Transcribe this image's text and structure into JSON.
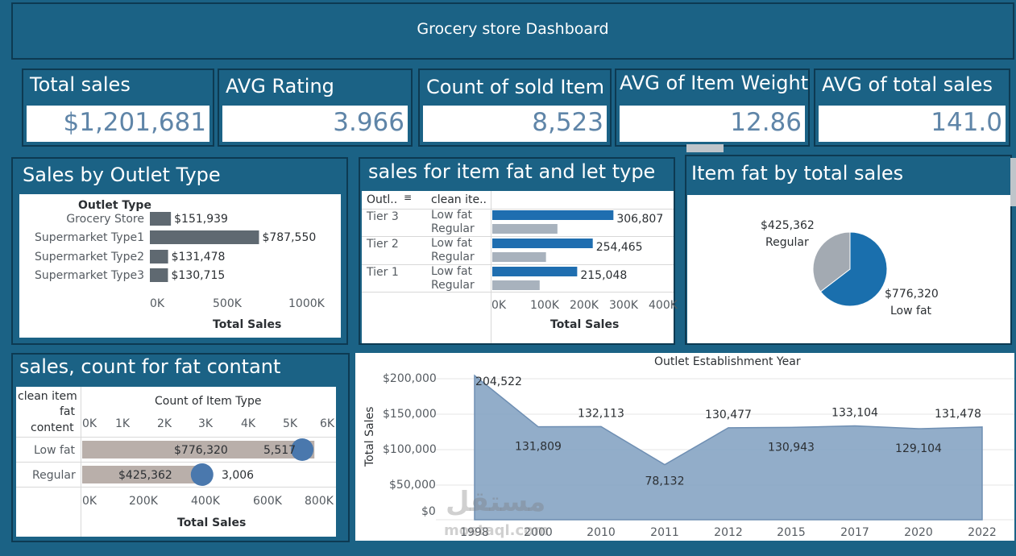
{
  "dashboard": {
    "title": "Grocery store Dashboard"
  },
  "kpis": [
    {
      "label": "Total sales",
      "value": "$1,201,681"
    },
    {
      "label": "AVG Rating",
      "value": "3.966"
    },
    {
      "label": "Count of sold Item",
      "value": "8,523"
    },
    {
      "label": "AVG of Item Weight",
      "value": "12.86"
    },
    {
      "label": "AVG of total sales",
      "value": "141.0"
    }
  ],
  "outlet_type_panel": {
    "title": "Sales by Outlet Type",
    "header": "Outlet Type",
    "x_label": "Total Sales",
    "ticks": [
      "0K",
      "500K",
      "1000K"
    ]
  },
  "fat_tier_panel": {
    "title": "sales for item fat and let type",
    "col1": "Outl..",
    "col2": "clean ite..",
    "x_label": "Total Sales",
    "ticks": [
      "0K",
      "100K",
      "200K",
      "300K",
      "400K"
    ],
    "tiers": [
      "Tier 3",
      "Tier 2",
      "Tier 1"
    ],
    "fat_labels": [
      "Low fat",
      "Regular"
    ]
  },
  "pie_panel": {
    "title": "Item fat by total sales",
    "regular_value": "$425,362",
    "regular_label": "Regular",
    "lowfat_value": "$776,320",
    "lowfat_label": "Low fat"
  },
  "count_panel": {
    "title": "sales, count for  fat contant",
    "row_header_1": "clean item",
    "row_header_2": "fat",
    "row_header_3": "content",
    "top_axis_title": "Count of Item Type",
    "top_ticks": [
      "0K",
      "1K",
      "2K",
      "3K",
      "4K",
      "5K",
      "6K"
    ],
    "bottom_ticks": [
      "0K",
      "200K",
      "400K",
      "600K",
      "800K"
    ],
    "x_label": "Total Sales",
    "rows": [
      {
        "label": "Low fat",
        "sales_label": "$776,320",
        "count_label": "5,517"
      },
      {
        "label": "Regular",
        "sales_label": "$425,362",
        "count_label": "3,006"
      }
    ]
  },
  "area_panel": {
    "title": "Outlet Establishment Year",
    "y_label": "Total Sales",
    "y_ticks": [
      "$200,000",
      "$150,000",
      "$100,000",
      "$50,000",
      "$0"
    ],
    "watermark": "مستقل",
    "watermark_sub": "mostaql.com"
  },
  "chart_data": [
    {
      "type": "bar",
      "title": "Sales by Outlet Type",
      "xlabel": "Total Sales",
      "categories": [
        "Grocery Store",
        "Supermarket Type1",
        "Supermarket Type2",
        "Supermarket Type3"
      ],
      "values": [
        151939,
        787550,
        131478,
        130715
      ],
      "value_labels": [
        "$151,939",
        "$787,550",
        "$131,478",
        "$130,715"
      ],
      "xlim": [
        0,
        1000000
      ],
      "color": "#5f6971"
    },
    {
      "type": "bar",
      "title": "sales for item fat and let type",
      "xlabel": "Total Sales",
      "categories": [
        "Tier 3",
        "Tier 2",
        "Tier 1"
      ],
      "series": [
        {
          "name": "Low fat",
          "values": [
            306807,
            254465,
            215048
          ],
          "color": "#1f6eb0"
        },
        {
          "name": "Regular",
          "values": [
            165000,
            136000,
            120000
          ],
          "color": "#a8b2bd"
        }
      ],
      "total_labels": [
        "306,807",
        "254,465",
        "215,048"
      ],
      "xlim": [
        0,
        400000
      ]
    },
    {
      "type": "pie",
      "title": "Item fat by total sales",
      "slices": [
        {
          "name": "Low fat",
          "value": 776320,
          "color": "#1a6fad"
        },
        {
          "name": "Regular",
          "value": 425362,
          "color": "#a3aab2"
        }
      ]
    },
    {
      "type": "bar",
      "title": "sales, count for  fat contant",
      "categories": [
        "Low fat",
        "Regular"
      ],
      "series": [
        {
          "name": "Total Sales",
          "values": [
            776320,
            425362
          ],
          "xlim": [
            0,
            800000
          ],
          "color": "#b9afaa"
        },
        {
          "name": "Count of Item Type",
          "values": [
            5517,
            3006
          ],
          "xlim": [
            0,
            6000
          ],
          "color": "#4a78ad"
        }
      ]
    },
    {
      "type": "area",
      "title": "Outlet Establishment Year",
      "ylabel": "Total Sales",
      "categories": [
        "1998",
        "2000",
        "2010",
        "2011",
        "2012",
        "2015",
        "2017",
        "2020",
        "2022"
      ],
      "values": [
        204522,
        131809,
        132113,
        78132,
        130477,
        130943,
        133104,
        129104,
        131478
      ],
      "value_labels": [
        "204,522",
        "131,809",
        "132,113",
        "78,132",
        "130,477",
        "130,943",
        "133,104",
        "129,104",
        "131,478"
      ],
      "ylim": [
        0,
        200000
      ],
      "color": "#7f9fbf"
    }
  ]
}
